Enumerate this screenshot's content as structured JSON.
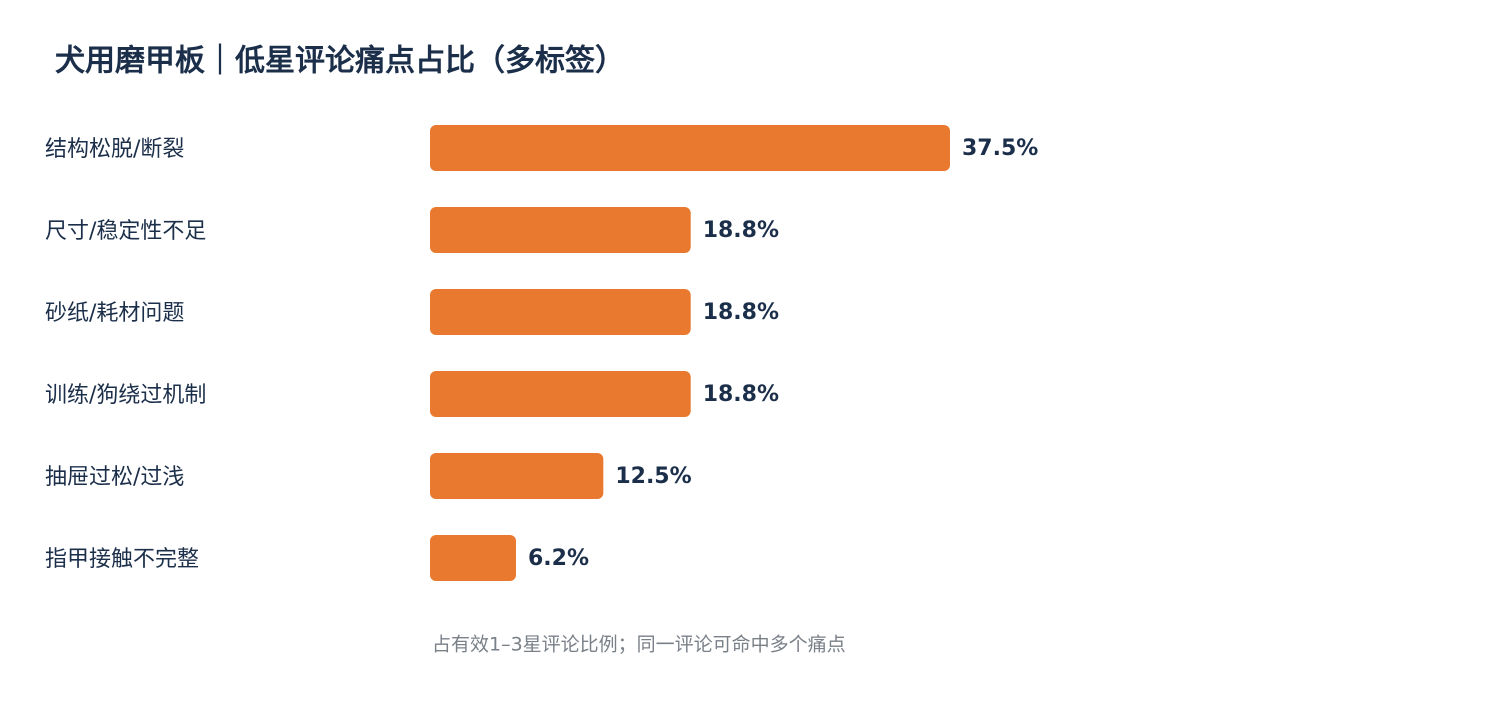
{
  "chart_data": {
    "type": "bar",
    "orientation": "horizontal",
    "title": "犬用磨甲板｜低星评论痛点占比（多标签）",
    "categories": [
      "结构松脱/断裂",
      "尺寸/稳定性不足",
      "砂纸/耗材问题",
      "训练/狗绕过机制",
      "抽屉过松/过浅",
      "指甲接触不完整"
    ],
    "values": [
      37.5,
      18.8,
      18.8,
      18.8,
      12.5,
      6.2
    ],
    "value_labels": [
      "37.5%",
      "18.8%",
      "18.8%",
      "18.8%",
      "12.5%",
      "6.2%"
    ],
    "color": "#E8792F",
    "note": "占有效1–3星评论比例；同一评论可命中多个痛点"
  }
}
